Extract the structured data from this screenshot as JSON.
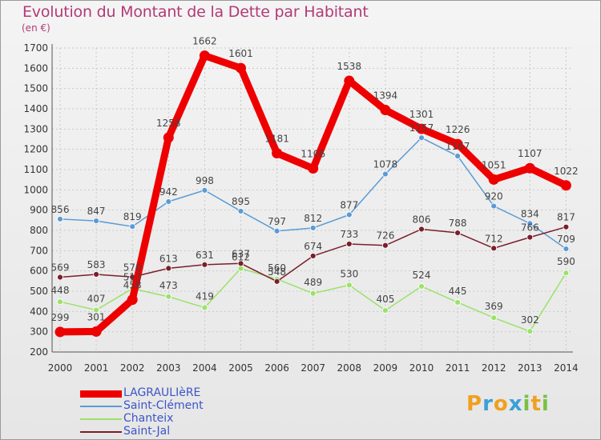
{
  "title": "Evolution du Montant de la Dette par Habitant",
  "subtitle": "(en €)",
  "chart_data": {
    "type": "line",
    "x": [
      "2000",
      "2001",
      "2002",
      "2003",
      "2004",
      "2005",
      "2006",
      "2007",
      "2008",
      "2009",
      "2010",
      "2011",
      "2012",
      "2013",
      "2014"
    ],
    "ylim": [
      200,
      1700
    ],
    "yticks": [
      200,
      300,
      400,
      500,
      600,
      700,
      800,
      900,
      1000,
      1100,
      1200,
      1300,
      1400,
      1500,
      1600,
      1700
    ],
    "grid": true,
    "legend_position": "bottom-left",
    "series": [
      {
        "name": "LAGRAULIèRE",
        "color": "#ee0000",
        "values": [
          299,
          301,
          458,
          1258,
          1662,
          1601,
          1181,
          1106,
          1538,
          1394,
          1301,
          1226,
          1051,
          1107,
          1022
        ],
        "labels": [
          "299",
          "301",
          "458",
          "1258",
          "1662",
          "1601",
          "1181",
          "1106",
          "1538",
          "1394",
          "1301",
          "1226",
          "1051",
          "1107",
          "1022"
        ]
      },
      {
        "name": "Saint-Clément",
        "color": "#5b9bd5",
        "values": [
          856,
          847,
          819,
          942,
          998,
          895,
          797,
          812,
          877,
          1078,
          1257,
          1167,
          920,
          834,
          709
        ],
        "labels": [
          "856",
          "847",
          "819",
          "942",
          "998",
          "895",
          "797",
          "812",
          "877",
          "1078",
          "1257",
          "1167",
          "920",
          "834",
          "709"
        ]
      },
      {
        "name": "Chanteix",
        "color": "#9be26a",
        "values": [
          448,
          407,
          513,
          473,
          419,
          612,
          560,
          489,
          530,
          405,
          524,
          445,
          369,
          302,
          590
        ],
        "labels": [
          "448",
          "407",
          "513",
          "473",
          "419",
          "612",
          "560",
          "489",
          "530",
          "405",
          "524",
          "445",
          "369",
          "302",
          "590"
        ]
      },
      {
        "name": "Saint-Jal",
        "color": "#7a1f2b",
        "values": [
          569,
          583,
          570,
          613,
          631,
          637,
          548,
          674,
          733,
          726,
          806,
          788,
          712,
          766,
          817
        ],
        "labels": [
          "569",
          "583",
          "570",
          "613",
          "631",
          "637",
          "548",
          "674",
          "733",
          "726",
          "806",
          "788",
          "712",
          "766",
          "817"
        ]
      }
    ]
  },
  "logo": {
    "letters": [
      "P",
      "r",
      "o",
      "x",
      "i",
      "t",
      "i"
    ],
    "colors": [
      "#f0a020",
      "#3aa0d8",
      "#f0a020",
      "#3aa0d8",
      "#7ac143",
      "#f0a020",
      "#7ac143"
    ]
  }
}
